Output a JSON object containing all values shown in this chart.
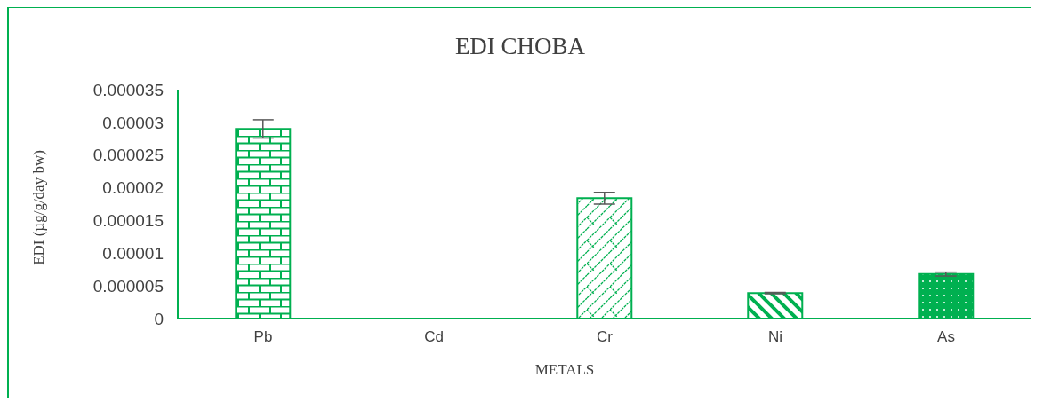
{
  "chart_data": {
    "type": "bar",
    "title": "EDI CHOBA",
    "xlabel": "METALS",
    "ylabel": "EDI (µg/g/day bw)",
    "categories": [
      "Pb",
      "Cd",
      "Cr",
      "Ni",
      "As"
    ],
    "values": [
      2.9e-05,
      0,
      1.84e-05,
      3.9e-06,
      6.8e-06
    ],
    "errors": [
      1.4e-06,
      null,
      9e-07,
      1e-07,
      3e-07
    ],
    "colors": [
      "#00b050",
      "#00b050",
      "#00b050",
      "#00b050",
      "#00b050"
    ],
    "ylim": [
      0,
      3.5e-05
    ],
    "yticks": [
      0,
      {
        "value": 5e-06,
        "label": "0.000005"
      },
      {
        "value": 1e-05,
        "label": "0.00001"
      },
      {
        "value": 1.5e-05,
        "label": "0.000015"
      },
      {
        "value": 2e-05,
        "label": "0.00002"
      },
      {
        "value": 2.5e-05,
        "label": "0.000025"
      },
      {
        "value": 3e-05,
        "label": "0.00003"
      },
      {
        "value": 3.5e-05,
        "label": "0.000035"
      }
    ],
    "grid": false
  }
}
